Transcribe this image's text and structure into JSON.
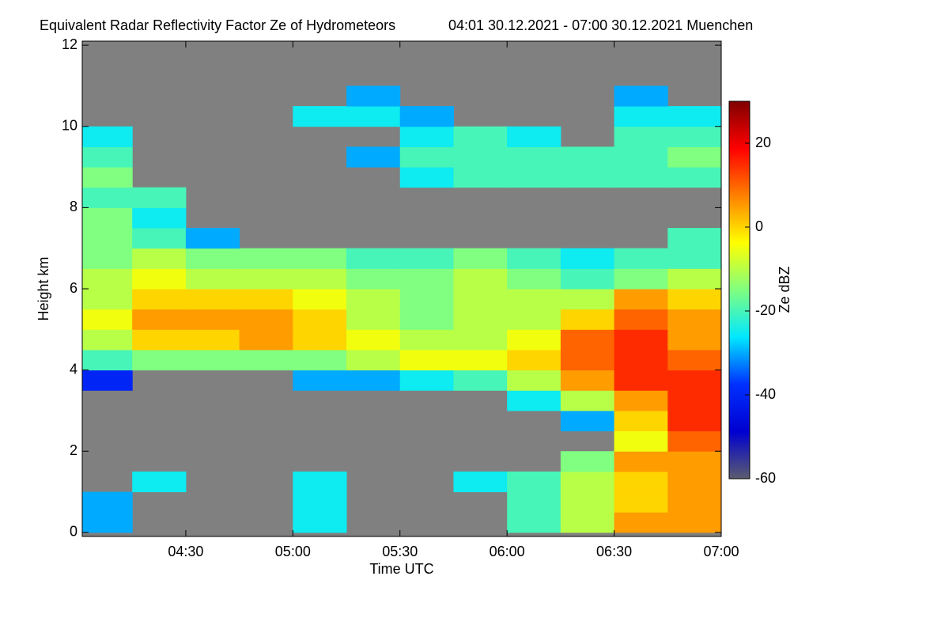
{
  "chart_data": {
    "type": "heatmap",
    "title": "Equivalent Radar Reflectivity Factor Ze of Hydrometeors",
    "subtitle": "04:01 30.12.2021 - 07:00 30.12.2021 Muenchen",
    "x_label": "Time UTC",
    "y_label": "Height km",
    "colorbar_label": "Ze dBZ",
    "xlim": [
      241,
      420
    ],
    "ylim": [
      -0.1,
      12.1
    ],
    "xticks": [
      {
        "value": 270,
        "label": "04:30"
      },
      {
        "value": 300,
        "label": "05:00"
      },
      {
        "value": 330,
        "label": "05:30"
      },
      {
        "value": 360,
        "label": "06:00"
      },
      {
        "value": 390,
        "label": "06:30"
      },
      {
        "value": 420,
        "label": "07:00"
      }
    ],
    "yticks": [
      0,
      2,
      4,
      6,
      8,
      10,
      12
    ],
    "clim": [
      -60,
      30
    ],
    "cticks": [
      20,
      0,
      -20,
      -40,
      -60
    ],
    "background": "#808080",
    "colormap": [
      "#5c5c70",
      "#0000d0",
      "#0030ff",
      "#00e8ff",
      "#80ff80",
      "#ffff00",
      "#ff8000",
      "#ff0000",
      "#800000"
    ],
    "xbins": [
      240,
      255,
      270,
      285,
      300,
      315,
      330,
      345,
      360,
      375,
      390,
      405,
      420
    ],
    "ybins": [
      0,
      0.5,
      1,
      1.5,
      2,
      2.5,
      3,
      3.5,
      4,
      4.5,
      5,
      5.5,
      6,
      6.5,
      7,
      7.5,
      8,
      8.5,
      9,
      9.5,
      10,
      10.5,
      11,
      11.5,
      12
    ],
    "z": [
      [
        -30,
        null,
        null,
        null,
        -25,
        null,
        null,
        null,
        -20,
        -10,
        5,
        5
      ],
      [
        -30,
        null,
        null,
        null,
        -25,
        null,
        null,
        null,
        -20,
        -10,
        0,
        5
      ],
      [
        null,
        -25,
        null,
        null,
        -25,
        null,
        null,
        -25,
        -20,
        -10,
        0,
        5
      ],
      [
        null,
        null,
        null,
        null,
        null,
        null,
        null,
        null,
        null,
        -15,
        5,
        5
      ],
      [
        null,
        null,
        null,
        null,
        null,
        null,
        null,
        null,
        null,
        null,
        -5,
        10
      ],
      [
        null,
        null,
        null,
        null,
        null,
        null,
        null,
        null,
        null,
        -30,
        0,
        15
      ],
      [
        null,
        null,
        null,
        null,
        null,
        null,
        null,
        null,
        -25,
        -10,
        5,
        15
      ],
      [
        -40,
        null,
        null,
        null,
        -30,
        -30,
        -25,
        -20,
        -10,
        5,
        15,
        15
      ],
      [
        -20,
        -15,
        -15,
        -15,
        -15,
        -10,
        -5,
        -5,
        0,
        10,
        15,
        10
      ],
      [
        -10,
        0,
        0,
        5,
        0,
        -5,
        -10,
        -10,
        -5,
        10,
        15,
        5
      ],
      [
        -5,
        5,
        5,
        5,
        0,
        -10,
        -15,
        -10,
        -10,
        0,
        10,
        5
      ],
      [
        -10,
        0,
        0,
        0,
        -5,
        -10,
        -15,
        -10,
        -10,
        -10,
        5,
        0
      ],
      [
        -10,
        -5,
        -10,
        -10,
        -10,
        -15,
        -15,
        -10,
        -15,
        -20,
        -15,
        -10
      ],
      [
        -15,
        -10,
        -15,
        -15,
        -15,
        -20,
        -20,
        -15,
        -20,
        -25,
        -20,
        -20
      ],
      [
        -15,
        -20,
        -30,
        null,
        null,
        null,
        null,
        null,
        null,
        null,
        null,
        -20
      ],
      [
        -15,
        -25,
        null,
        null,
        null,
        null,
        null,
        null,
        null,
        null,
        null,
        null
      ],
      [
        -20,
        -20,
        null,
        null,
        null,
        null,
        null,
        null,
        null,
        null,
        null,
        null
      ],
      [
        -15,
        null,
        null,
        null,
        null,
        null,
        -25,
        -20,
        -20,
        -20,
        -20,
        -20
      ],
      [
        -20,
        null,
        null,
        null,
        null,
        -30,
        -20,
        -20,
        -20,
        -20,
        -20,
        -15
      ],
      [
        -25,
        null,
        null,
        null,
        null,
        null,
        -25,
        -20,
        -25,
        null,
        -20,
        -20
      ],
      [
        null,
        null,
        null,
        null,
        -25,
        -25,
        -30,
        null,
        null,
        null,
        -25,
        -25
      ],
      [
        null,
        null,
        null,
        null,
        null,
        -30,
        null,
        null,
        null,
        null,
        -30,
        null
      ],
      [
        null,
        null,
        null,
        null,
        null,
        null,
        null,
        null,
        null,
        null,
        null,
        null
      ],
      [
        null,
        null,
        null,
        null,
        null,
        null,
        null,
        null,
        null,
        null,
        null,
        null
      ]
    ]
  }
}
